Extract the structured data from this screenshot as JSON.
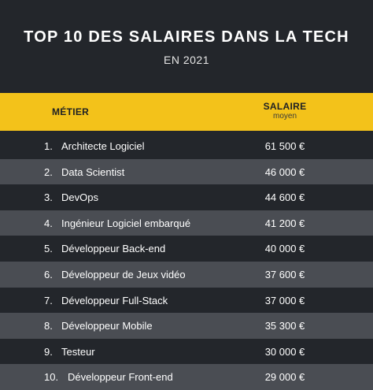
{
  "header": {
    "title": "TOP 10 DES SALAIRES DANS LA TECH",
    "subtitle": "EN 2021"
  },
  "table": {
    "columns": {
      "metier": "MÉTIER",
      "salaire": "SALAIRE",
      "salaire_sub": "moyen"
    },
    "rows": [
      {
        "rank": "1.",
        "job": "Architecte Logiciel",
        "salary": "61 500 €"
      },
      {
        "rank": "2.",
        "job": "Data Scientist",
        "salary": "46 000 €"
      },
      {
        "rank": "3.",
        "job": "DevOps",
        "salary": "44 600 €"
      },
      {
        "rank": "4.",
        "job": "Ingénieur Logiciel embarqué",
        "salary": "41 200 €"
      },
      {
        "rank": "5.",
        "job": "Développeur Back-end",
        "salary": "40 000 €"
      },
      {
        "rank": "6.",
        "job": "Développeur de Jeux vidéo",
        "salary": "37 600 €"
      },
      {
        "rank": "7.",
        "job": "Développeur Full-Stack",
        "salary": "37 000 €"
      },
      {
        "rank": "8.",
        "job": "Développeur Mobile",
        "salary": "35 300 €"
      },
      {
        "rank": "9.",
        "job": "Testeur",
        "salary": "30 000 €"
      },
      {
        "rank": "10.",
        "job": "Développeur Front-end",
        "salary": "29 000 €"
      }
    ]
  },
  "colors": {
    "background": "#23262b",
    "row_alt": "#4a4d53",
    "accent": "#f3c21a"
  }
}
